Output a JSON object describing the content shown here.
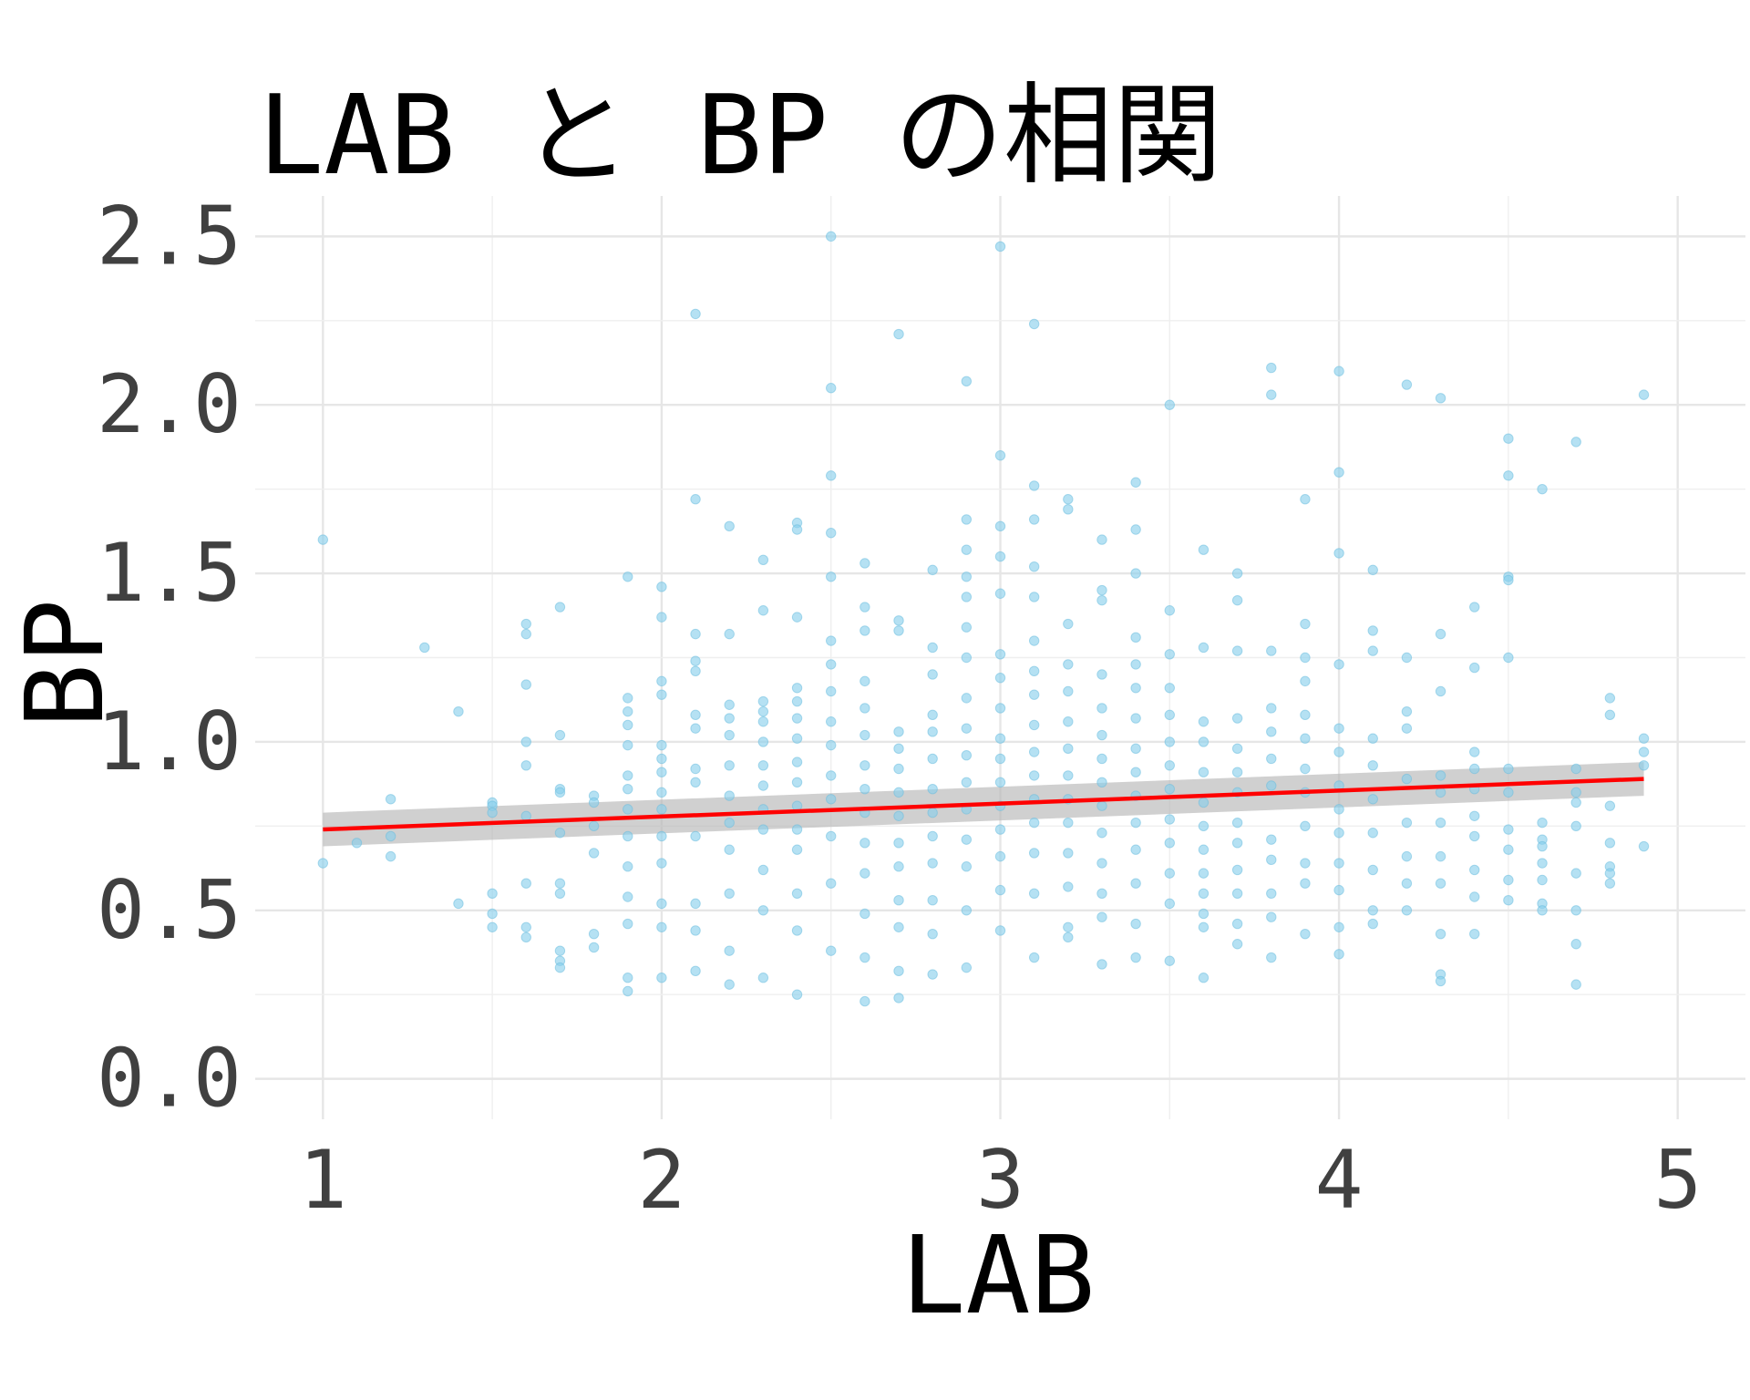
{
  "chart_data": {
    "type": "scatter",
    "title": "LAB と BP の相関",
    "xlabel": "LAB",
    "ylabel": "BP",
    "xlim": [
      0.8,
      5.2
    ],
    "ylim": [
      -0.12,
      2.62
    ],
    "x_ticks": [
      1,
      2,
      3,
      4,
      5
    ],
    "x_tick_labels": [
      "1",
      "2",
      "3",
      "4",
      "5"
    ],
    "y_ticks": [
      0.0,
      0.5,
      1.0,
      1.5,
      2.0,
      2.5
    ],
    "y_tick_labels": [
      "0.0",
      "0.5",
      "1.0",
      "1.5",
      "2.0",
      "2.5"
    ],
    "grid": true,
    "legend": "none",
    "colors": {
      "points": "#87CEEB",
      "fit_line": "#ff0000",
      "confidence_band": "#b3b3b3"
    },
    "series": [
      {
        "kind": "points",
        "x": [
          1.0,
          1.0,
          1.1,
          1.2,
          1.2,
          1.2,
          1.3,
          1.4,
          1.4,
          1.5,
          1.5,
          1.5,
          1.5,
          1.5,
          1.5,
          1.6,
          1.6,
          1.6,
          1.6,
          1.6,
          1.6,
          1.6,
          1.6,
          1.6,
          1.7,
          1.7,
          1.7,
          1.7,
          1.7,
          1.7,
          1.7,
          1.7,
          1.7,
          1.7,
          1.8,
          1.8,
          1.8,
          1.8,
          1.8,
          1.8,
          1.9,
          1.9,
          1.9,
          1.9,
          1.9,
          1.9,
          1.9,
          1.9,
          1.9,
          1.9,
          1.9,
          1.9,
          1.9,
          1.9,
          2.0,
          2.0,
          2.0,
          2.0,
          2.0,
          2.0,
          2.0,
          2.0,
          2.0,
          2.0,
          2.0,
          2.0,
          2.0,
          2.0,
          2.1,
          2.1,
          2.1,
          2.1,
          2.1,
          2.1,
          2.1,
          2.1,
          2.1,
          2.1,
          2.1,
          2.1,
          2.1,
          2.2,
          2.2,
          2.2,
          2.2,
          2.2,
          2.2,
          2.2,
          2.2,
          2.2,
          2.2,
          2.2,
          2.2,
          2.3,
          2.3,
          2.3,
          2.3,
          2.3,
          2.3,
          2.3,
          2.3,
          2.3,
          2.3,
          2.3,
          2.3,
          2.3,
          2.4,
          2.4,
          2.4,
          2.4,
          2.4,
          2.4,
          2.4,
          2.4,
          2.4,
          2.4,
          2.4,
          2.4,
          2.4,
          2.4,
          2.4,
          2.5,
          2.5,
          2.5,
          2.5,
          2.5,
          2.5,
          2.5,
          2.5,
          2.5,
          2.5,
          2.5,
          2.5,
          2.5,
          2.5,
          2.5,
          2.6,
          2.6,
          2.6,
          2.6,
          2.6,
          2.6,
          2.6,
          2.6,
          2.6,
          2.6,
          2.6,
          2.6,
          2.6,
          2.6,
          2.7,
          2.7,
          2.7,
          2.7,
          2.7,
          2.7,
          2.7,
          2.7,
          2.7,
          2.7,
          2.7,
          2.7,
          2.7,
          2.7,
          2.8,
          2.8,
          2.8,
          2.8,
          2.8,
          2.8,
          2.8,
          2.8,
          2.8,
          2.8,
          2.8,
          2.8,
          2.8,
          2.9,
          2.9,
          2.9,
          2.9,
          2.9,
          2.9,
          2.9,
          2.9,
          2.9,
          2.9,
          2.9,
          2.9,
          2.9,
          2.9,
          2.9,
          2.9,
          3.0,
          3.0,
          3.0,
          3.0,
          3.0,
          3.0,
          3.0,
          3.0,
          3.0,
          3.0,
          3.0,
          3.0,
          3.0,
          3.0,
          3.0,
          3.0,
          3.1,
          3.1,
          3.1,
          3.1,
          3.1,
          3.1,
          3.1,
          3.1,
          3.1,
          3.1,
          3.1,
          3.1,
          3.1,
          3.1,
          3.1,
          3.1,
          3.2,
          3.2,
          3.2,
          3.2,
          3.2,
          3.2,
          3.2,
          3.2,
          3.2,
          3.2,
          3.2,
          3.2,
          3.2,
          3.2,
          3.3,
          3.3,
          3.3,
          3.3,
          3.3,
          3.3,
          3.3,
          3.3,
          3.3,
          3.3,
          3.3,
          3.3,
          3.3,
          3.3,
          3.4,
          3.4,
          3.4,
          3.4,
          3.4,
          3.4,
          3.4,
          3.4,
          3.4,
          3.4,
          3.4,
          3.4,
          3.4,
          3.4,
          3.4,
          3.5,
          3.5,
          3.5,
          3.5,
          3.5,
          3.5,
          3.5,
          3.5,
          3.5,
          3.5,
          3.5,
          3.5,
          3.5,
          3.6,
          3.6,
          3.6,
          3.6,
          3.6,
          3.6,
          3.6,
          3.6,
          3.6,
          3.6,
          3.6,
          3.6,
          3.6,
          3.7,
          3.7,
          3.7,
          3.7,
          3.7,
          3.7,
          3.7,
          3.7,
          3.7,
          3.7,
          3.7,
          3.7,
          3.7,
          3.8,
          3.8,
          3.8,
          3.8,
          3.8,
          3.8,
          3.8,
          3.8,
          3.8,
          3.8,
          3.8,
          3.8,
          3.9,
          3.9,
          3.9,
          3.9,
          3.9,
          3.9,
          3.9,
          3.9,
          3.9,
          3.9,
          3.9,
          3.9,
          4.0,
          4.0,
          4.0,
          4.0,
          4.0,
          4.0,
          4.0,
          4.0,
          4.0,
          4.0,
          4.0,
          4.0,
          4.0,
          4.1,
          4.1,
          4.1,
          4.1,
          4.1,
          4.1,
          4.1,
          4.1,
          4.1,
          4.1,
          4.2,
          4.2,
          4.2,
          4.2,
          4.2,
          4.2,
          4.2,
          4.2,
          4.2,
          4.3,
          4.3,
          4.3,
          4.3,
          4.3,
          4.3,
          4.3,
          4.3,
          4.3,
          4.3,
          4.3,
          4.4,
          4.4,
          4.4,
          4.4,
          4.4,
          4.4,
          4.4,
          4.4,
          4.4,
          4.4,
          4.5,
          4.5,
          4.5,
          4.5,
          4.5,
          4.5,
          4.5,
          4.5,
          4.5,
          4.5,
          4.5,
          4.6,
          4.6,
          4.6,
          4.6,
          4.6,
          4.6,
          4.6,
          4.6,
          4.7,
          4.7,
          4.7,
          4.7,
          4.7,
          4.7,
          4.7,
          4.7,
          4.7,
          4.8,
          4.8,
          4.8,
          4.8,
          4.8,
          4.8,
          4.8,
          4.9,
          4.9,
          4.9,
          4.9,
          4.9
        ],
        "y": [
          1.6,
          0.64,
          0.7,
          0.83,
          0.72,
          0.66,
          1.28,
          1.09,
          0.52,
          0.82,
          0.81,
          0.79,
          0.55,
          0.49,
          0.45,
          1.35,
          1.32,
          1.17,
          1.0,
          0.93,
          0.78,
          0.58,
          0.45,
          0.42,
          1.4,
          1.02,
          0.86,
          0.85,
          0.73,
          0.58,
          0.55,
          0.38,
          0.35,
          0.33,
          0.84,
          0.82,
          0.75,
          0.67,
          0.43,
          0.39,
          1.49,
          1.13,
          1.09,
          1.05,
          0.99,
          0.9,
          0.86,
          0.8,
          0.72,
          0.63,
          0.54,
          0.46,
          0.3,
          0.26,
          1.46,
          1.37,
          1.18,
          1.14,
          0.99,
          0.95,
          0.91,
          0.85,
          0.8,
          0.72,
          0.64,
          0.52,
          0.45,
          0.3,
          2.27,
          1.72,
          1.32,
          1.24,
          1.21,
          1.08,
          1.04,
          0.92,
          0.88,
          0.72,
          0.52,
          0.44,
          0.32,
          1.64,
          1.32,
          1.11,
          1.07,
          1.02,
          0.93,
          0.84,
          0.76,
          0.68,
          0.55,
          0.38,
          0.28,
          1.54,
          1.39,
          1.12,
          1.09,
          1.06,
          1.0,
          0.93,
          0.87,
          0.8,
          0.74,
          0.62,
          0.5,
          0.3,
          1.65,
          1.63,
          1.37,
          1.16,
          1.12,
          1.07,
          1.01,
          0.94,
          0.88,
          0.81,
          0.74,
          0.68,
          0.55,
          0.44,
          0.25,
          2.5,
          2.05,
          1.79,
          1.62,
          1.49,
          1.3,
          1.23,
          1.15,
          1.06,
          0.99,
          0.9,
          0.83,
          0.72,
          0.58,
          0.38,
          1.53,
          1.4,
          1.33,
          1.18,
          1.1,
          1.02,
          0.93,
          0.86,
          0.79,
          0.7,
          0.61,
          0.49,
          0.36,
          0.23,
          2.21,
          1.36,
          1.33,
          1.03,
          0.98,
          0.92,
          0.85,
          0.78,
          0.7,
          0.63,
          0.53,
          0.45,
          0.32,
          0.24,
          1.51,
          1.28,
          1.2,
          1.08,
          1.03,
          0.95,
          0.86,
          0.79,
          0.72,
          0.64,
          0.53,
          0.43,
          0.31,
          2.07,
          1.66,
          1.57,
          1.49,
          1.43,
          1.34,
          1.25,
          1.13,
          1.04,
          0.96,
          0.88,
          0.8,
          0.71,
          0.63,
          0.5,
          0.33,
          2.47,
          1.85,
          1.64,
          1.55,
          1.44,
          1.26,
          1.19,
          1.1,
          1.01,
          0.95,
          0.88,
          0.81,
          0.74,
          0.66,
          0.56,
          0.44,
          2.24,
          1.76,
          1.66,
          1.52,
          1.43,
          1.3,
          1.21,
          1.14,
          1.05,
          0.97,
          0.9,
          0.83,
          0.76,
          0.67,
          0.55,
          0.36,
          1.72,
          1.69,
          1.35,
          1.23,
          1.15,
          1.06,
          0.98,
          0.9,
          0.83,
          0.76,
          0.67,
          0.57,
          0.45,
          0.42,
          1.6,
          1.45,
          1.42,
          1.2,
          1.1,
          1.02,
          0.95,
          0.88,
          0.81,
          0.73,
          0.64,
          0.55,
          0.48,
          0.34,
          1.77,
          1.63,
          1.5,
          1.31,
          1.23,
          1.16,
          1.07,
          0.98,
          0.91,
          0.84,
          0.76,
          0.68,
          0.58,
          0.46,
          0.36,
          2.0,
          1.39,
          1.26,
          1.16,
          1.08,
          1.0,
          0.93,
          0.86,
          0.77,
          0.7,
          0.61,
          0.52,
          0.35,
          1.57,
          1.28,
          1.06,
          1.0,
          0.91,
          0.82,
          0.75,
          0.68,
          0.61,
          0.55,
          0.49,
          0.45,
          0.3,
          1.5,
          1.42,
          1.27,
          1.07,
          0.98,
          0.91,
          0.85,
          0.76,
          0.7,
          0.62,
          0.55,
          0.46,
          0.4,
          2.11,
          2.03,
          1.27,
          1.1,
          1.03,
          0.95,
          0.87,
          0.71,
          0.65,
          0.55,
          0.48,
          0.36,
          1.72,
          1.35,
          1.25,
          1.18,
          1.08,
          1.01,
          0.92,
          0.85,
          0.75,
          0.64,
          0.58,
          0.43,
          2.1,
          1.8,
          1.56,
          1.23,
          1.04,
          0.97,
          0.87,
          0.8,
          0.73,
          0.64,
          0.56,
          0.45,
          0.37,
          1.51,
          1.33,
          1.27,
          1.01,
          0.93,
          0.83,
          0.73,
          0.62,
          0.5,
          0.46,
          2.06,
          1.25,
          1.09,
          1.04,
          0.89,
          0.76,
          0.66,
          0.58,
          0.5,
          2.02,
          1.32,
          1.15,
          0.9,
          0.85,
          0.76,
          0.66,
          0.58,
          0.43,
          0.31,
          0.29,
          1.4,
          1.22,
          0.97,
          0.92,
          0.86,
          0.78,
          0.72,
          0.62,
          0.54,
          0.43,
          1.9,
          1.79,
          1.49,
          1.48,
          1.25,
          0.92,
          0.85,
          0.74,
          0.68,
          0.59,
          0.53,
          1.75,
          0.76,
          0.71,
          0.69,
          0.64,
          0.59,
          0.52,
          0.5,
          1.89,
          0.92,
          0.82,
          0.75,
          0.61,
          0.5,
          0.4,
          0.28,
          0.85,
          1.13,
          1.08,
          0.81,
          0.7,
          0.63,
          0.61,
          0.58,
          2.03,
          1.01,
          0.97,
          0.93,
          0.69
        ]
      },
      {
        "kind": "fit_line",
        "x": [
          1.0,
          4.9
        ],
        "y": [
          0.74,
          0.89
        ]
      },
      {
        "kind": "confidence_band",
        "x": [
          1.0,
          4.9
        ],
        "y_lower": [
          0.69,
          0.84
        ],
        "y_upper": [
          0.79,
          0.94
        ]
      }
    ]
  }
}
